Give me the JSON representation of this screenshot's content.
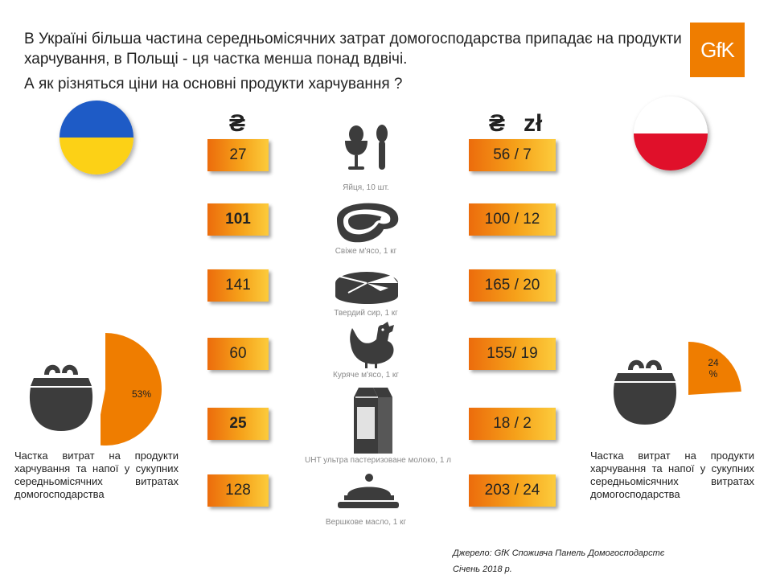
{
  "header": {
    "title": "В Україні більша частина середньомісячних затрат домогосподарства припадає на продукти харчування, в Польщі - ця частка менша понад вдвічі.",
    "question": "А як різняться ціни на основні продукти харчування ?",
    "logo_text": "GfK",
    "brand_color": "#ef7d00"
  },
  "currency": {
    "ukraine": "₴",
    "poland_uah": "₴",
    "poland_pln": "zł"
  },
  "chart_data": {
    "type": "table",
    "columns": [
      "Україна, ₴",
      "Польща, ₴ / zł"
    ],
    "products": [
      {
        "icon": "eggs-icon",
        "label": "Яйця, 10 шт.",
        "ukraine": "27",
        "poland": "56 / 7",
        "ukraine_value": 27,
        "poland_uah": 56,
        "poland_pln": 7
      },
      {
        "icon": "meat-icon",
        "label": "Свіже м'ясо, 1 кг",
        "ukraine": "101",
        "poland": "100 / 12",
        "ukraine_value": 101,
        "poland_uah": 100,
        "poland_pln": 12
      },
      {
        "icon": "cheese-icon",
        "label": "Твердий сир, 1 кг",
        "ukraine": "141",
        "poland": "165 / 20",
        "ukraine_value": 141,
        "poland_uah": 165,
        "poland_pln": 20
      },
      {
        "icon": "chicken-icon",
        "label": "Куряче м'ясо, 1 кг",
        "ukraine": "60",
        "poland": "155/ 19",
        "ukraine_value": 60,
        "poland_uah": 155,
        "poland_pln": 19
      },
      {
        "icon": "milk-icon",
        "label": "UHT  ультра пастеризоване молоко, 1 л",
        "ukraine": "25",
        "poland": "18 / 2",
        "ukraine_value": 25,
        "poland_uah": 18,
        "poland_pln": 2
      },
      {
        "icon": "butter-icon",
        "label": "Вершкове масло, 1 кг",
        "ukraine": "128",
        "poland": "203 / 24",
        "ukraine_value": 128,
        "poland_uah": 203,
        "poland_pln": 24
      }
    ],
    "food_share": [
      {
        "country": "ukraine",
        "value": 53,
        "label": "53%"
      },
      {
        "country": "poland",
        "value": 24,
        "label_line1": "24",
        "label_line2": "%"
      }
    ],
    "accent_color": "#ef7d00"
  },
  "share_description": {
    "ukraine": "Частка витрат на продукти харчування та напої у сукупних середньомісячних витратах домогосподарства",
    "poland": "Частка витрат на продукти харчування та напої у сукупних середньомісячних витратах домогосподарства"
  },
  "flags": {
    "ukraine_colors": [
      "#1e5bc6",
      "#fcd116"
    ],
    "poland_colors": [
      "#ffffff",
      "#e0102a"
    ]
  },
  "source": {
    "line1": "Джерело: GfK  Споживча Панель Домогосподарстє",
    "line2": "Січень 2018 р."
  }
}
